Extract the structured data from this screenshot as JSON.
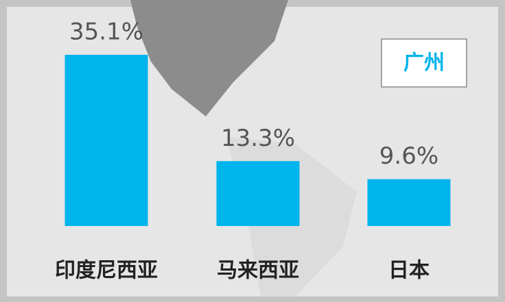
{
  "chart_data": {
    "type": "bar",
    "annotation": "广州",
    "categories": [
      "印度尼西亚",
      "马来西亚",
      "日本"
    ],
    "values": [
      35.1,
      13.3,
      9.6
    ],
    "value_labels": [
      "35.1%",
      "13.3%",
      "9.6%"
    ],
    "color": "#00b4ec"
  }
}
